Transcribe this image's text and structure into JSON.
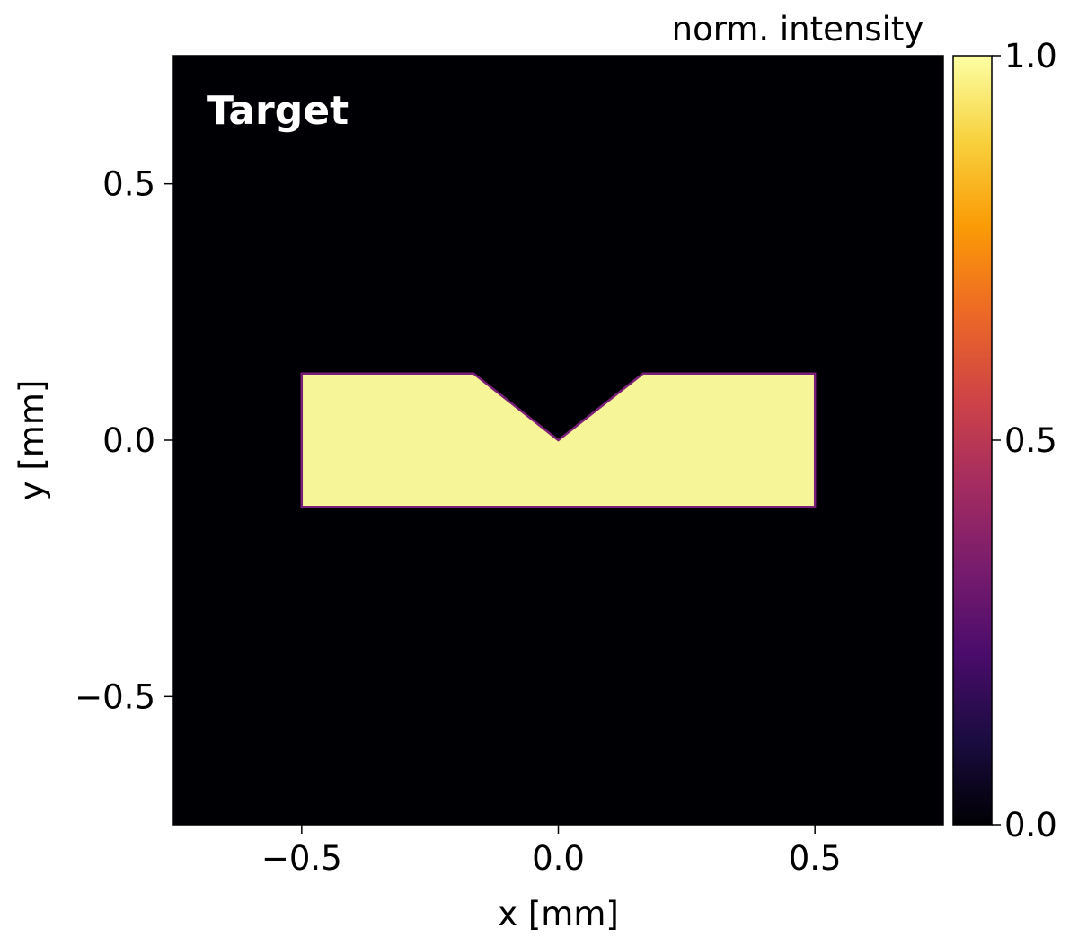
{
  "chart_data": {
    "type": "heatmap",
    "title": "",
    "panel_label": "Target",
    "xlabel": "x [mm]",
    "ylabel": "y [mm]",
    "xlim": [
      -0.75,
      0.75
    ],
    "ylim": [
      -0.75,
      0.75
    ],
    "x_ticks": [
      -0.5,
      0.0,
      0.5
    ],
    "x_tick_labels": [
      "−0.5",
      "0.0",
      "0.5"
    ],
    "y_ticks": [
      -0.5,
      0.0,
      0.5
    ],
    "y_tick_labels": [
      "−0.5",
      "0.0",
      "0.5"
    ],
    "grid": false,
    "background_value": 0.0,
    "shape": {
      "description_value": 1.0,
      "vertices": [
        [
          -0.5,
          -0.13
        ],
        [
          0.5,
          -0.13
        ],
        [
          0.5,
          0.13
        ],
        [
          0.165,
          0.13
        ],
        [
          0.0,
          0.0
        ],
        [
          -0.165,
          0.13
        ],
        [
          -0.5,
          0.13
        ]
      ]
    },
    "colorbar": {
      "label": "norm. intensity",
      "colormap": "inferno",
      "range": [
        0.0,
        1.0
      ],
      "ticks": [
        0.0,
        0.5,
        1.0
      ],
      "tick_labels": [
        "0.0",
        "0.5",
        "1.0"
      ]
    }
  },
  "colors": {
    "background": "#000004",
    "shape_fill": "#f6f597",
    "shape_edge": "#7a1f7a",
    "colormap_stops": [
      "#000004",
      "#1b0c41",
      "#4a0c6b",
      "#781c6d",
      "#a52c60",
      "#cf4446",
      "#ed6925",
      "#fb9b06",
      "#f7d13d",
      "#fcffa4"
    ]
  }
}
